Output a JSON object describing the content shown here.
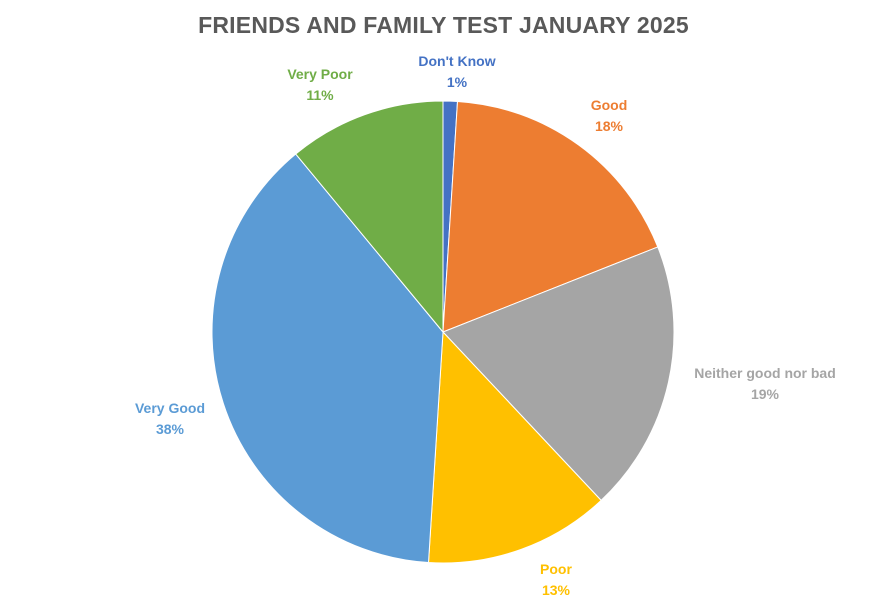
{
  "chart_data": {
    "type": "pie",
    "title": "FRIENDS AND FAMILY TEST JANUARY 2025",
    "categories": [
      "Don't Know",
      "Good",
      "Neither good nor bad",
      "Poor",
      "Very Good",
      "Very Poor"
    ],
    "values": [
      1,
      18,
      19,
      13,
      38,
      11
    ],
    "value_labels": [
      "1%",
      "18%",
      "19%",
      "13%",
      "38%",
      "11%"
    ],
    "colors": [
      "#4472C4",
      "#ED7D31",
      "#A5A5A5",
      "#FFC000",
      "#5B9BD5",
      "#70AD47"
    ],
    "start_angle_deg": 0,
    "direction": "clockwise",
    "legend": "none"
  }
}
